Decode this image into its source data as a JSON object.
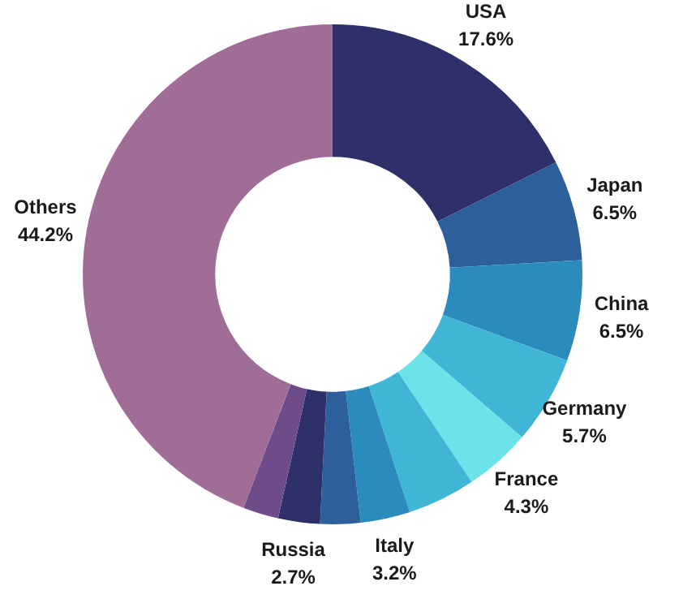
{
  "chart_data": {
    "type": "donut",
    "categories": [
      "USA",
      "Japan",
      "China",
      "Germany",
      "France",
      null,
      "Italy",
      null,
      "Russia",
      null,
      "Others"
    ],
    "values": [
      17.6,
      6.5,
      6.5,
      5.7,
      4.3,
      4.4,
      3.2,
      2.6,
      2.7,
      2.3,
      44.2
    ],
    "value_labels": [
      "17.6%",
      "6.5%",
      "6.5%",
      "5.7%",
      "4.3%",
      null,
      "3.2%",
      null,
      "2.7%",
      null,
      "44.2%"
    ],
    "colors": [
      "#2e3169",
      "#2d5f9a",
      "#2b8bbd",
      "#40b6d6",
      "#6ae4e8",
      "#40b6d6",
      "#2b8bbd",
      "#2d5f9a",
      "#2e3169",
      "#6e4c8a",
      "#a06d96"
    ],
    "legend": false
  }
}
